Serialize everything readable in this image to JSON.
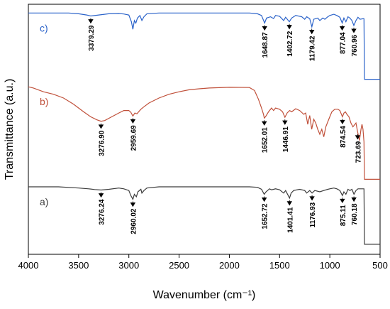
{
  "chart_data": {
    "type": "line",
    "xlabel": "Wavenumber (cm⁻¹)",
    "ylabel": "Transmittance (a.u.)",
    "xlim": [
      4000,
      500
    ],
    "x_reversed": true,
    "xticks": [
      "4000",
      "3500",
      "3000",
      "2500",
      "2000",
      "1500",
      "1000",
      "500"
    ],
    "xtick_values": [
      4000,
      3500,
      3000,
      2500,
      2000,
      1500,
      1000,
      500
    ],
    "ylim": [
      0,
      1
    ],
    "y_tick_labels": false,
    "grid": false,
    "legend": "none",
    "series": [
      {
        "name": "c)",
        "color": "#2a62c9",
        "points": [
          [
            4000,
            0.965
          ],
          [
            3600,
            0.965
          ],
          [
            3500,
            0.962
          ],
          [
            3420,
            0.957
          ],
          [
            3379,
            0.953
          ],
          [
            3300,
            0.957
          ],
          [
            3200,
            0.962
          ],
          [
            3100,
            0.963
          ],
          [
            3050,
            0.961
          ],
          [
            3000,
            0.957
          ],
          [
            2975,
            0.93
          ],
          [
            2960,
            0.9
          ],
          [
            2945,
            0.935
          ],
          [
            2930,
            0.925
          ],
          [
            2915,
            0.945
          ],
          [
            2890,
            0.955
          ],
          [
            2870,
            0.935
          ],
          [
            2850,
            0.95
          ],
          [
            2820,
            0.962
          ],
          [
            2700,
            0.965
          ],
          [
            1800,
            0.965
          ],
          [
            1720,
            0.962
          ],
          [
            1680,
            0.955
          ],
          [
            1649,
            0.925
          ],
          [
            1630,
            0.945
          ],
          [
            1590,
            0.95
          ],
          [
            1560,
            0.943
          ],
          [
            1540,
            0.955
          ],
          [
            1500,
            0.952
          ],
          [
            1460,
            0.935
          ],
          [
            1440,
            0.948
          ],
          [
            1403,
            0.93
          ],
          [
            1380,
            0.945
          ],
          [
            1340,
            0.955
          ],
          [
            1280,
            0.95
          ],
          [
            1250,
            0.94
          ],
          [
            1230,
            0.95
          ],
          [
            1200,
            0.942
          ],
          [
            1179,
            0.91
          ],
          [
            1160,
            0.94
          ],
          [
            1120,
            0.945
          ],
          [
            1100,
            0.935
          ],
          [
            1070,
            0.945
          ],
          [
            1050,
            0.94
          ],
          [
            1020,
            0.95
          ],
          [
            1000,
            0.955
          ],
          [
            960,
            0.96
          ],
          [
            930,
            0.955
          ],
          [
            900,
            0.948
          ],
          [
            877,
            0.925
          ],
          [
            860,
            0.945
          ],
          [
            840,
            0.93
          ],
          [
            820,
            0.95
          ],
          [
            800,
            0.945
          ],
          [
            780,
            0.935
          ],
          [
            761,
            0.915
          ],
          [
            740,
            0.935
          ],
          [
            720,
            0.948
          ],
          [
            700,
            0.94
          ],
          [
            670,
            0.942
          ],
          [
            660,
            0.942
          ],
          [
            655,
            0.7
          ],
          [
            500,
            0.7
          ]
        ]
      },
      {
        "name": "b)",
        "color": "#c0503a",
        "points": [
          [
            4000,
            0.67
          ],
          [
            3950,
            0.665
          ],
          [
            3850,
            0.65
          ],
          [
            3750,
            0.64
          ],
          [
            3650,
            0.625
          ],
          [
            3550,
            0.6
          ],
          [
            3450,
            0.57
          ],
          [
            3380,
            0.55
          ],
          [
            3320,
            0.538
          ],
          [
            3277,
            0.532
          ],
          [
            3240,
            0.535
          ],
          [
            3180,
            0.548
          ],
          [
            3100,
            0.565
          ],
          [
            3050,
            0.575
          ],
          [
            3000,
            0.575
          ],
          [
            2980,
            0.568
          ],
          [
            2960,
            0.553
          ],
          [
            2940,
            0.565
          ],
          [
            2920,
            0.562
          ],
          [
            2880,
            0.58
          ],
          [
            2850,
            0.59
          ],
          [
            2800,
            0.605
          ],
          [
            2700,
            0.625
          ],
          [
            2600,
            0.64
          ],
          [
            2500,
            0.65
          ],
          [
            2400,
            0.658
          ],
          [
            2300,
            0.662
          ],
          [
            2200,
            0.665
          ],
          [
            2000,
            0.668
          ],
          [
            1800,
            0.667
          ],
          [
            1750,
            0.655
          ],
          [
            1710,
            0.62
          ],
          [
            1680,
            0.585
          ],
          [
            1660,
            0.56
          ],
          [
            1652,
            0.545
          ],
          [
            1640,
            0.55
          ],
          [
            1610,
            0.57
          ],
          [
            1580,
            0.585
          ],
          [
            1560,
            0.575
          ],
          [
            1540,
            0.585
          ],
          [
            1500,
            0.58
          ],
          [
            1470,
            0.57
          ],
          [
            1447,
            0.548
          ],
          [
            1425,
            0.565
          ],
          [
            1400,
            0.575
          ],
          [
            1380,
            0.57
          ],
          [
            1340,
            0.582
          ],
          [
            1300,
            0.575
          ],
          [
            1260,
            0.56
          ],
          [
            1240,
            0.565
          ],
          [
            1220,
            0.52
          ],
          [
            1200,
            0.555
          ],
          [
            1180,
            0.5
          ],
          [
            1160,
            0.54
          ],
          [
            1140,
            0.525
          ],
          [
            1120,
            0.5
          ],
          [
            1100,
            0.48
          ],
          [
            1080,
            0.5
          ],
          [
            1060,
            0.47
          ],
          [
            1040,
            0.51
          ],
          [
            1020,
            0.53
          ],
          [
            1000,
            0.55
          ],
          [
            980,
            0.57
          ],
          [
            950,
            0.58
          ],
          [
            920,
            0.58
          ],
          [
            900,
            0.575
          ],
          [
            875,
            0.55
          ],
          [
            860,
            0.565
          ],
          [
            845,
            0.57
          ],
          [
            830,
            0.56
          ],
          [
            810,
            0.55
          ],
          [
            790,
            0.525
          ],
          [
            770,
            0.51
          ],
          [
            750,
            0.52
          ],
          [
            740,
            0.525
          ],
          [
            724,
            0.49
          ],
          [
            705,
            0.455
          ],
          [
            690,
            0.5
          ],
          [
            680,
            0.52
          ],
          [
            670,
            0.5
          ],
          [
            660,
            0.45
          ],
          [
            655,
            0.3
          ],
          [
            500,
            0.3
          ]
        ]
      },
      {
        "name": "a)",
        "color": "#3c3c3c",
        "points": [
          [
            4000,
            0.27
          ],
          [
            3700,
            0.27
          ],
          [
            3500,
            0.265
          ],
          [
            3400,
            0.262
          ],
          [
            3340,
            0.259
          ],
          [
            3276,
            0.257
          ],
          [
            3200,
            0.26
          ],
          [
            3100,
            0.265
          ],
          [
            3050,
            0.262
          ],
          [
            3000,
            0.255
          ],
          [
            2980,
            0.235
          ],
          [
            2960,
            0.22
          ],
          [
            2945,
            0.24
          ],
          [
            2925,
            0.23
          ],
          [
            2910,
            0.25
          ],
          [
            2880,
            0.26
          ],
          [
            2870,
            0.245
          ],
          [
            2850,
            0.255
          ],
          [
            2820,
            0.265
          ],
          [
            2700,
            0.27
          ],
          [
            1800,
            0.27
          ],
          [
            1720,
            0.268
          ],
          [
            1680,
            0.26
          ],
          [
            1653,
            0.24
          ],
          [
            1635,
            0.25
          ],
          [
            1600,
            0.262
          ],
          [
            1580,
            0.258
          ],
          [
            1560,
            0.26
          ],
          [
            1540,
            0.262
          ],
          [
            1500,
            0.258
          ],
          [
            1460,
            0.245
          ],
          [
            1440,
            0.255
          ],
          [
            1401,
            0.225
          ],
          [
            1385,
            0.245
          ],
          [
            1360,
            0.255
          ],
          [
            1300,
            0.26
          ],
          [
            1250,
            0.255
          ],
          [
            1230,
            0.245
          ],
          [
            1200,
            0.255
          ],
          [
            1177,
            0.245
          ],
          [
            1150,
            0.255
          ],
          [
            1100,
            0.25
          ],
          [
            1060,
            0.255
          ],
          [
            1020,
            0.26
          ],
          [
            1000,
            0.262
          ],
          [
            960,
            0.265
          ],
          [
            930,
            0.262
          ],
          [
            900,
            0.255
          ],
          [
            875,
            0.235
          ],
          [
            860,
            0.25
          ],
          [
            840,
            0.24
          ],
          [
            820,
            0.26
          ],
          [
            800,
            0.255
          ],
          [
            780,
            0.26
          ],
          [
            760,
            0.24
          ],
          [
            740,
            0.255
          ],
          [
            720,
            0.262
          ],
          [
            700,
            0.262
          ],
          [
            670,
            0.262
          ],
          [
            660,
            0.262
          ],
          [
            655,
            0.04
          ],
          [
            500,
            0.04
          ]
        ]
      }
    ],
    "peak_labels": [
      {
        "series": "c)",
        "x": 3379.29,
        "text": "3379.29"
      },
      {
        "series": "c)",
        "x": 1648.87,
        "text": "1648.87"
      },
      {
        "series": "c)",
        "x": 1402.72,
        "text": "1402.72"
      },
      {
        "series": "c)",
        "x": 1179.42,
        "text": "1179.42"
      },
      {
        "series": "c)",
        "x": 877.04,
        "text": "877.04"
      },
      {
        "series": "c)",
        "x": 760.96,
        "text": "760.96"
      },
      {
        "series": "b)",
        "x": 3276.9,
        "text": "3276.90"
      },
      {
        "series": "b)",
        "x": 2959.69,
        "text": "2959.69"
      },
      {
        "series": "b)",
        "x": 1652.01,
        "text": "1652.01"
      },
      {
        "series": "b)",
        "x": 1446.91,
        "text": "1446.91"
      },
      {
        "series": "b)",
        "x": 874.54,
        "text": "874.54"
      },
      {
        "series": "b)",
        "x": 723.69,
        "text": "723.69"
      },
      {
        "series": "a)",
        "x": 3276.24,
        "text": "3276.24"
      },
      {
        "series": "a)",
        "x": 2960.02,
        "text": "2960.02"
      },
      {
        "series": "a)",
        "x": 1652.72,
        "text": "1652.72"
      },
      {
        "series": "a)",
        "x": 1401.41,
        "text": "1401.41"
      },
      {
        "series": "a)",
        "x": 1176.93,
        "text": "1176.93"
      },
      {
        "series": "a)",
        "x": 875.11,
        "text": "875.11"
      },
      {
        "series": "a)",
        "x": 760.18,
        "text": "760.18"
      }
    ]
  }
}
